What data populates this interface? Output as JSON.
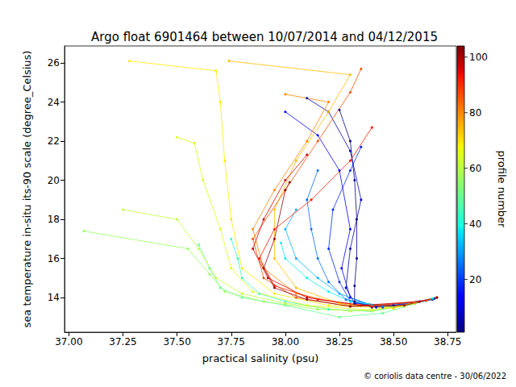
{
  "chart_data": {
    "type": "line",
    "title": "Argo float 6901464 between 10/07/2014 and 04/12/2015",
    "x_label": "practical salinity (psu)",
    "y_label": "sea temperature in-situ its-90 scale (degree_Celsius)",
    "xlim": [
      36.98,
      38.79
    ],
    "xticks": [
      {
        "value": 37.0,
        "label": "37.00"
      },
      {
        "value": 37.25,
        "label": "37.25"
      },
      {
        "value": 37.5,
        "label": "37.50"
      },
      {
        "value": 37.75,
        "label": "37.75"
      },
      {
        "value": 38.0,
        "label": "38.00"
      },
      {
        "value": 38.25,
        "label": "38.25"
      },
      {
        "value": 38.5,
        "label": "38.50"
      },
      {
        "value": 38.75,
        "label": "38.75"
      }
    ],
    "ylim": [
      12.23,
      26.87
    ],
    "yticks": [
      14,
      16,
      18,
      20,
      22,
      24,
      26
    ],
    "grid": false,
    "marker": "circle",
    "colorbar": {
      "label": "profile number",
      "range": [
        1,
        104
      ],
      "ticks": [
        20,
        40,
        60,
        80,
        100
      ]
    },
    "credit": "© coriolis data centre - 30/06/2022",
    "series": [
      {
        "profile": 1,
        "values": [
          [
            38.25,
            23.6
          ],
          [
            38.3,
            22.0
          ],
          [
            38.32,
            20.0
          ],
          [
            38.33,
            18.0
          ],
          [
            38.33,
            16.0
          ],
          [
            38.32,
            14.6
          ],
          [
            38.32,
            13.8
          ],
          [
            38.4,
            13.5
          ],
          [
            38.55,
            13.6
          ],
          [
            38.68,
            13.9
          ],
          [
            38.7,
            14.0
          ]
        ]
      },
      {
        "profile": 6,
        "values": [
          [
            38.1,
            24.2
          ],
          [
            38.2,
            23.5
          ],
          [
            38.3,
            21.5
          ],
          [
            38.35,
            19.0
          ],
          [
            38.3,
            16.5
          ],
          [
            38.28,
            14.5
          ],
          [
            38.32,
            13.7
          ],
          [
            38.5,
            13.6
          ],
          [
            38.69,
            13.95
          ]
        ]
      },
      {
        "profile": 12,
        "values": [
          [
            38.0,
            23.5
          ],
          [
            38.15,
            22.3
          ],
          [
            38.25,
            20.5
          ],
          [
            38.3,
            17.5
          ],
          [
            38.26,
            15.5
          ],
          [
            38.3,
            14.0
          ],
          [
            38.42,
            13.5
          ],
          [
            38.6,
            13.7
          ],
          [
            38.7,
            14.0
          ]
        ]
      },
      {
        "profile": 18,
        "values": [
          [
            38.35,
            21.7
          ],
          [
            38.3,
            20.5
          ],
          [
            38.22,
            18.5
          ],
          [
            38.2,
            16.5
          ],
          [
            38.25,
            14.8
          ],
          [
            38.3,
            13.8
          ],
          [
            38.45,
            13.5
          ],
          [
            38.62,
            13.8
          ]
        ]
      },
      {
        "profile": 25,
        "values": [
          [
            38.15,
            20.5
          ],
          [
            38.1,
            19.0
          ],
          [
            38.12,
            17.5
          ],
          [
            38.15,
            16.0
          ],
          [
            38.2,
            14.8
          ],
          [
            38.28,
            13.9
          ],
          [
            38.45,
            13.55
          ],
          [
            38.65,
            13.85
          ]
        ]
      },
      {
        "profile": 32,
        "values": [
          [
            38.05,
            18.5
          ],
          [
            38.0,
            17.5
          ],
          [
            38.05,
            16.0
          ],
          [
            38.15,
            15.0
          ],
          [
            38.25,
            14.2
          ],
          [
            38.4,
            13.6
          ],
          [
            38.6,
            13.75
          ]
        ]
      },
      {
        "profile": 38,
        "values": [
          [
            37.98,
            16.8
          ],
          [
            38.0,
            16.0
          ],
          [
            38.1,
            15.0
          ],
          [
            38.2,
            14.3
          ],
          [
            38.3,
            13.8
          ],
          [
            38.5,
            13.5
          ],
          [
            38.68,
            13.95
          ]
        ]
      },
      {
        "profile": 44,
        "values": [
          [
            37.75,
            17.0
          ],
          [
            37.78,
            16.0
          ],
          [
            37.8,
            15.0
          ],
          [
            37.88,
            14.2
          ],
          [
            38.0,
            13.8
          ],
          [
            38.2,
            13.4
          ],
          [
            38.4,
            13.3
          ],
          [
            38.6,
            13.7
          ]
        ]
      },
      {
        "profile": 50,
        "values": [
          [
            37.6,
            16.7
          ],
          [
            37.65,
            15.5
          ],
          [
            37.7,
            14.5
          ],
          [
            37.8,
            14.0
          ],
          [
            38.0,
            13.6
          ],
          [
            38.25,
            13.0
          ],
          [
            38.45,
            13.2
          ],
          [
            38.65,
            13.85
          ]
        ]
      },
      {
        "profile": 56,
        "values": [
          [
            37.07,
            17.4
          ],
          [
            37.55,
            16.5
          ],
          [
            37.65,
            15.2
          ],
          [
            37.72,
            14.3
          ],
          [
            37.9,
            13.8
          ],
          [
            38.15,
            13.4
          ],
          [
            38.4,
            13.3
          ],
          [
            38.6,
            13.7
          ]
        ]
      },
      {
        "profile": 61,
        "values": [
          [
            37.25,
            18.5
          ],
          [
            37.5,
            18.0
          ],
          [
            37.6,
            16.5
          ],
          [
            37.68,
            15.0
          ],
          [
            37.8,
            14.2
          ],
          [
            38.0,
            13.7
          ],
          [
            38.3,
            13.3
          ],
          [
            38.55,
            13.55
          ]
        ]
      },
      {
        "profile": 65,
        "values": [
          [
            37.5,
            22.2
          ],
          [
            37.58,
            21.9
          ],
          [
            37.62,
            20.0
          ],
          [
            37.7,
            17.5
          ],
          [
            37.75,
            15.5
          ],
          [
            37.85,
            14.3
          ],
          [
            38.1,
            13.6
          ],
          [
            38.4,
            13.35
          ],
          [
            38.6,
            13.7
          ]
        ]
      },
      {
        "profile": 69,
        "values": [
          [
            37.28,
            26.1
          ],
          [
            37.68,
            25.6
          ],
          [
            37.7,
            24.0
          ],
          [
            37.72,
            21.0
          ],
          [
            37.75,
            18.0
          ],
          [
            37.8,
            15.5
          ],
          [
            37.95,
            14.2
          ],
          [
            38.2,
            13.6
          ],
          [
            38.5,
            13.45
          ],
          [
            38.7,
            14.0
          ]
        ]
      },
      {
        "profile": 74,
        "values": [
          [
            37.74,
            26.1
          ],
          [
            38.3,
            25.4
          ],
          [
            38.2,
            23.5
          ],
          [
            38.05,
            21.0
          ],
          [
            37.95,
            18.5
          ],
          [
            37.95,
            16.0
          ],
          [
            38.05,
            14.5
          ],
          [
            38.25,
            13.7
          ],
          [
            38.5,
            13.5
          ],
          [
            38.7,
            14.0
          ]
        ]
      },
      {
        "profile": 80,
        "values": [
          [
            38.0,
            24.4
          ],
          [
            38.2,
            24.0
          ],
          [
            38.1,
            22.0
          ],
          [
            37.95,
            19.5
          ],
          [
            37.85,
            17.5
          ],
          [
            37.9,
            15.5
          ],
          [
            38.05,
            14.2
          ],
          [
            38.3,
            13.6
          ],
          [
            38.55,
            13.6
          ],
          [
            38.7,
            14.0
          ]
        ]
      },
      {
        "profile": 86,
        "values": [
          [
            38.35,
            25.7
          ],
          [
            38.3,
            24.5
          ],
          [
            38.15,
            22.0
          ],
          [
            38.0,
            19.5
          ],
          [
            37.85,
            17.0
          ],
          [
            37.9,
            15.0
          ],
          [
            38.05,
            14.0
          ],
          [
            38.3,
            13.55
          ],
          [
            38.6,
            13.75
          ]
        ]
      },
      {
        "profile": 92,
        "values": [
          [
            38.4,
            22.7
          ],
          [
            38.3,
            21.0
          ],
          [
            38.12,
            19.0
          ],
          [
            37.95,
            17.5
          ],
          [
            37.88,
            16.0
          ],
          [
            37.95,
            14.6
          ],
          [
            38.15,
            13.9
          ],
          [
            38.4,
            13.55
          ],
          [
            38.65,
            13.85
          ]
        ]
      },
      {
        "profile": 97,
        "values": [
          [
            38.1,
            21.3
          ],
          [
            38.0,
            20.0
          ],
          [
            37.9,
            18.0
          ],
          [
            37.85,
            16.5
          ],
          [
            37.92,
            15.0
          ],
          [
            38.1,
            14.0
          ],
          [
            38.35,
            13.6
          ],
          [
            38.62,
            13.8
          ]
        ]
      },
      {
        "profile": 102,
        "values": [
          [
            38.02,
            19.9
          ],
          [
            38.0,
            19.5
          ],
          [
            37.95,
            17.0
          ],
          [
            37.9,
            15.5
          ],
          [
            37.95,
            14.5
          ],
          [
            38.1,
            13.9
          ],
          [
            38.3,
            13.55
          ],
          [
            38.55,
            13.6
          ],
          [
            38.7,
            14.0
          ]
        ]
      }
    ]
  }
}
